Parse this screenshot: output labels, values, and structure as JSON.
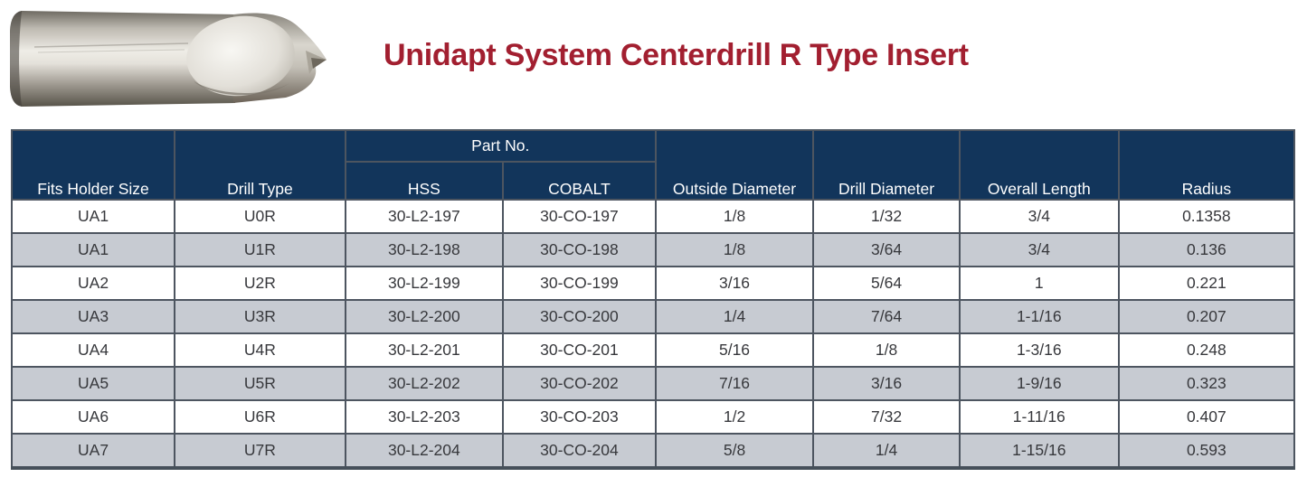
{
  "page": {
    "title": "Unidapt System Centerdrill R Type Insert"
  },
  "photo": {
    "name": "centerdrill-r-type-insert-photo"
  },
  "table": {
    "header": {
      "fits_holder_size": "Fits Holder Size",
      "drill_type": "Drill Type",
      "part_no_group": "Part No.",
      "hss": "HSS",
      "cobalt": "COBALT",
      "outside_diameter": "Outside Diameter",
      "drill_diameter": "Drill Diameter",
      "overall_length": "Overall Length",
      "radius": "Radius"
    },
    "rows": [
      [
        "UA1",
        "U0R",
        "30-L2-197",
        "30-CO-197",
        "1/8",
        "1/32",
        "3/4",
        "0.1358"
      ],
      [
        "UA1",
        "U1R",
        "30-L2-198",
        "30-CO-198",
        "1/8",
        "3/64",
        "3/4",
        "0.136"
      ],
      [
        "UA2",
        "U2R",
        "30-L2-199",
        "30-CO-199",
        "3/16",
        "5/64",
        "1",
        "0.221"
      ],
      [
        "UA3",
        "U3R",
        "30-L2-200",
        "30-CO-200",
        "1/4",
        "7/64",
        "1-1/16",
        "0.207"
      ],
      [
        "UA4",
        "U4R",
        "30-L2-201",
        "30-CO-201",
        "5/16",
        "1/8",
        "1-3/16",
        "0.248"
      ],
      [
        "UA5",
        "U5R",
        "30-L2-202",
        "30-CO-202",
        "7/16",
        "3/16",
        "1-9/16",
        "0.323"
      ],
      [
        "UA6",
        "U6R",
        "30-L2-203",
        "30-CO-203",
        "1/2",
        "7/32",
        "1-11/16",
        "0.407"
      ],
      [
        "UA7",
        "U7R",
        "30-L2-204",
        "30-CO-204",
        "5/8",
        "1/4",
        "1-15/16",
        "0.593"
      ]
    ],
    "colors": {
      "header_bg": "#12355B",
      "header_text": "#FFFFFF",
      "row_bg": "#FFFFFF",
      "row_alt_bg": "#C7CBD2",
      "border": "#4D5560",
      "cell_text": "#37383C",
      "title_accent": "#A21F30"
    }
  }
}
